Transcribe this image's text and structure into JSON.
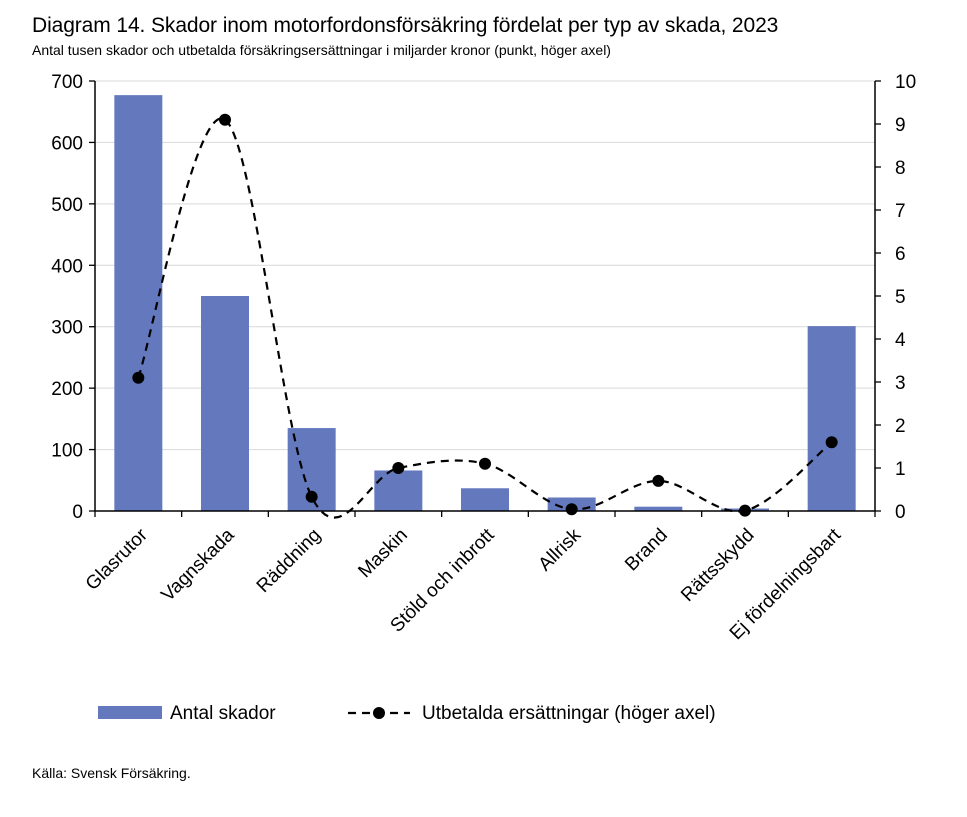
{
  "chart_data": {
    "type": "bar",
    "title": "Diagram 14. Skador inom motorfordonsförsäkring fördelat per typ av skada, 2023",
    "subtitle": "Antal tusen skador och utbetalda försäkringsersättningar i miljarder kronor (punkt, höger axel)",
    "categories": [
      "Glasrutor",
      "Vagnskada",
      "Räddning",
      "Maskin",
      "Stöld och inbrott",
      "Allrisk",
      "Brand",
      "Rättsskydd",
      "Ej fördelningsbart"
    ],
    "series": [
      {
        "name": "Antal skador",
        "type": "bar",
        "axis": "left",
        "color": "#6479bd",
        "values": [
          677,
          350,
          135,
          66,
          37,
          22,
          7,
          4,
          301
        ]
      },
      {
        "name": "Utbetalda ersättningar (höger axel)",
        "type": "line",
        "style": "dashed-smooth",
        "axis": "right",
        "color": "#000000",
        "values": [
          3.1,
          9.1,
          0.33,
          1.0,
          1.1,
          0.04,
          0.7,
          0.01,
          1.6
        ]
      }
    ],
    "y_left": {
      "min": 0,
      "max": 700,
      "step": 100,
      "ticks": [
        "0",
        "100",
        "200",
        "300",
        "400",
        "500",
        "600",
        "700"
      ]
    },
    "y_right": {
      "min": 0,
      "max": 10,
      "step": 1,
      "ticks": [
        "0",
        "1",
        "2",
        "3",
        "4",
        "5",
        "6",
        "7",
        "8",
        "9",
        "10"
      ]
    },
    "grid": true,
    "legend_position": "bottom",
    "source": "Källa: Svensk Försäkring."
  }
}
